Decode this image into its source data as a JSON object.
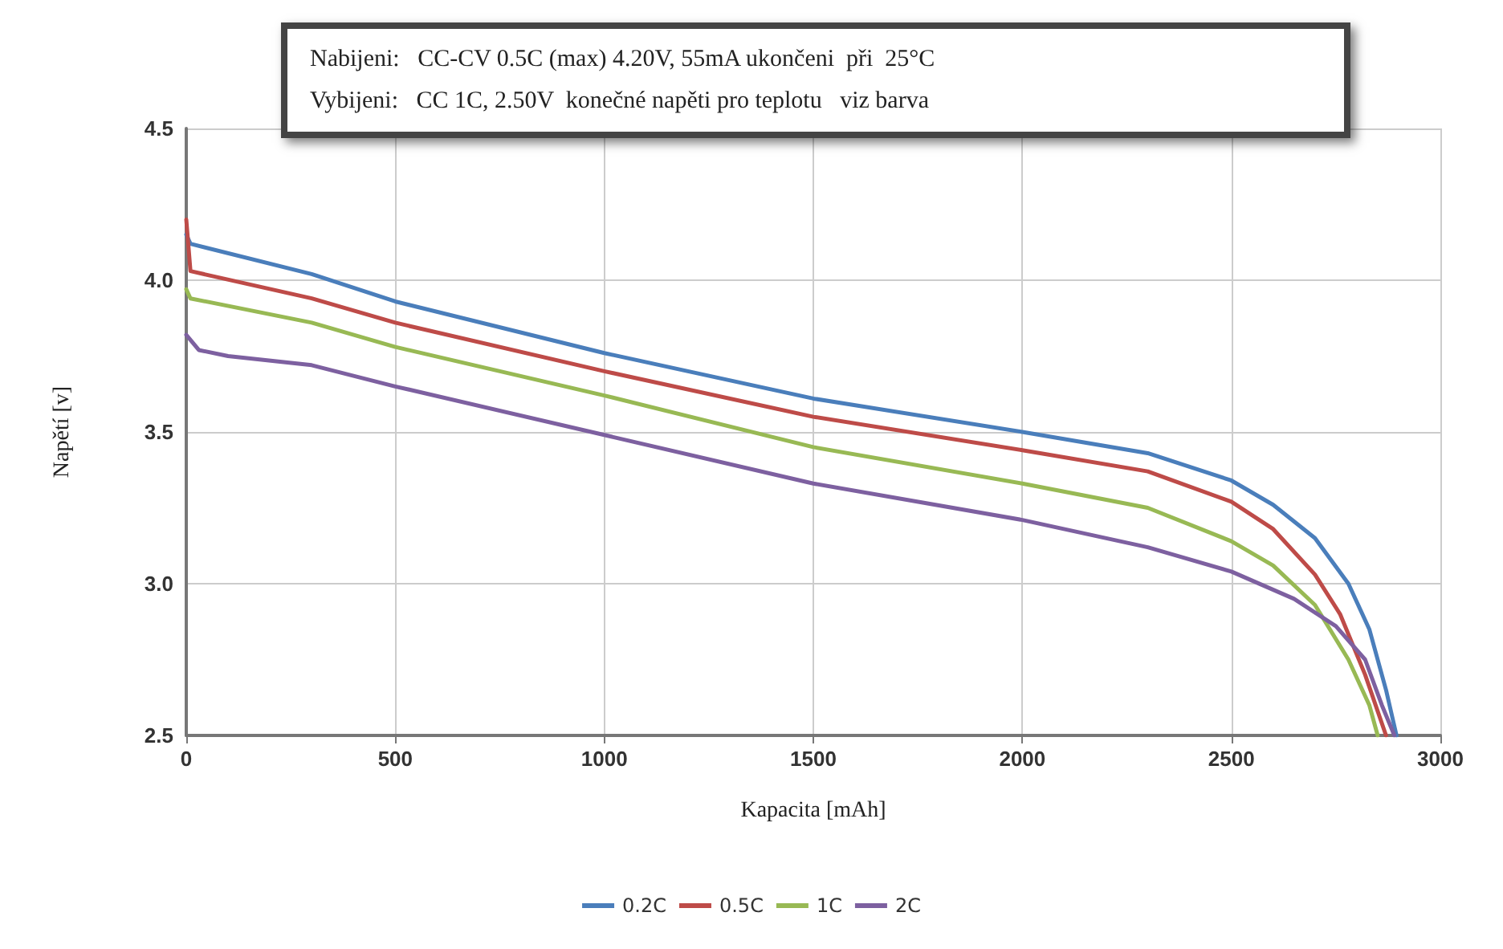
{
  "chart_data": {
    "type": "line",
    "xlabel": "Kapacita [mAh]",
    "ylabel": "Napětí [v]",
    "xlim": [
      0,
      3000
    ],
    "xticks": [
      0,
      500,
      1000,
      1500,
      2000,
      2500,
      3000
    ],
    "ylim": [
      2.5,
      4.5
    ],
    "yticks": [
      {
        "value": 2.5,
        "label": "2.5"
      },
      {
        "value": 3,
        "label": "3.0"
      },
      {
        "value": 3.5,
        "label": "3.5"
      },
      {
        "value": 4,
        "label": "4.0"
      },
      {
        "value": 4.5,
        "label": "4.5"
      }
    ],
    "grid": true,
    "legend": "bottom",
    "marker": "none",
    "line_style": "solid",
    "annotations": [
      "Nabijeni:   CC-CV 0.5C (max) 4.20V, 55mA ukončeni  při  25°C",
      "Vybijeni:   CC 1C, 2.50V  konečné napěti pro teplotu   viz barva"
    ],
    "series": [
      {
        "name": "0.2C",
        "color": "#4a7ebb",
        "x": [
          0,
          10,
          300,
          500,
          1000,
          1500,
          2000,
          2300,
          2500,
          2600,
          2700,
          2780,
          2830,
          2870,
          2895
        ],
        "values": [
          4.15,
          4.12,
          4.02,
          3.93,
          3.76,
          3.61,
          3.5,
          3.43,
          3.34,
          3.26,
          3.15,
          3.0,
          2.85,
          2.65,
          2.5
        ]
      },
      {
        "name": "0.5C",
        "color": "#be4b48",
        "x": [
          0,
          10,
          300,
          500,
          1000,
          1500,
          2000,
          2300,
          2500,
          2600,
          2700,
          2760,
          2820,
          2870
        ],
        "values": [
          4.2,
          4.03,
          3.94,
          3.86,
          3.7,
          3.55,
          3.44,
          3.37,
          3.27,
          3.18,
          3.03,
          2.9,
          2.7,
          2.5
        ]
      },
      {
        "name": "1C",
        "color": "#98b954",
        "x": [
          0,
          10,
          300,
          500,
          1000,
          1500,
          2000,
          2300,
          2500,
          2600,
          2700,
          2780,
          2830,
          2850
        ],
        "values": [
          3.97,
          3.94,
          3.86,
          3.78,
          3.62,
          3.45,
          3.33,
          3.25,
          3.14,
          3.06,
          2.93,
          2.75,
          2.6,
          2.5
        ]
      },
      {
        "name": "2C",
        "color": "#7d60a0",
        "x": [
          0,
          30,
          100,
          300,
          500,
          1000,
          1500,
          2000,
          2300,
          2500,
          2650,
          2750,
          2820,
          2860,
          2890
        ],
        "values": [
          3.82,
          3.77,
          3.75,
          3.72,
          3.65,
          3.49,
          3.33,
          3.21,
          3.12,
          3.04,
          2.95,
          2.86,
          2.75,
          2.6,
          2.5
        ]
      }
    ]
  }
}
